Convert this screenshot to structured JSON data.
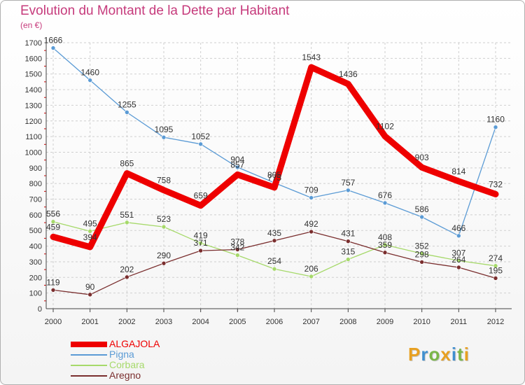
{
  "title": "Evolution du Montant de la Dette par Habitant",
  "subtitle": "(en €)",
  "brand": {
    "name": "Proxiti",
    "letters": [
      {
        "char": "P",
        "color": "#e8a020"
      },
      {
        "char": "r",
        "color": "#3f8fd0"
      },
      {
        "char": "o",
        "color": "#7ab648"
      },
      {
        "char": "x",
        "color": "#e8a020"
      },
      {
        "char": "i",
        "color": "#3f8fd0"
      },
      {
        "char": "t",
        "color": "#7ab648"
      },
      {
        "char": "i",
        "color": "#e8a020"
      }
    ]
  },
  "chart_data": {
    "type": "line",
    "title": "Evolution du Montant de la Dette par Habitant",
    "subtitle": "(en €)",
    "xlabel": "",
    "ylabel": "",
    "x": [
      "2000",
      "2001",
      "2002",
      "2003",
      "2004",
      "2005",
      "2006",
      "2007",
      "2008",
      "2009",
      "2010",
      "2011",
      "2012"
    ],
    "ylim": [
      0,
      1700
    ],
    "yticks": [
      0,
      100,
      200,
      300,
      400,
      500,
      600,
      700,
      800,
      900,
      1000,
      1100,
      1200,
      1300,
      1400,
      1500,
      1600,
      1700
    ],
    "grid": true,
    "legend_position": "bottom-left",
    "series": [
      {
        "name": "ALGAJOLA",
        "color": "#ee0000",
        "line_style": "thick",
        "values": [
          459,
          394,
          865,
          758,
          659,
          857,
          775,
          1543,
          1436,
          1102,
          903,
          814,
          732
        ]
      },
      {
        "name": "Pigna",
        "color": "#5b9bd5",
        "line_style": "thin",
        "values": [
          1666,
          1460,
          1255,
          1095,
          1052,
          904,
          805,
          709,
          757,
          676,
          586,
          466,
          1160
        ]
      },
      {
        "name": "Corbara",
        "color": "#a6d96a",
        "line_style": "thin",
        "values": [
          556,
          495,
          551,
          523,
          419,
          342,
          254,
          206,
          315,
          408,
          352,
          307,
          274
        ]
      },
      {
        "name": "Aregno",
        "color": "#7a2e2e",
        "line_style": "thin",
        "values": [
          119,
          90,
          202,
          290,
          371,
          378,
          435,
          492,
          431,
          359,
          298,
          264,
          195
        ]
      }
    ]
  }
}
